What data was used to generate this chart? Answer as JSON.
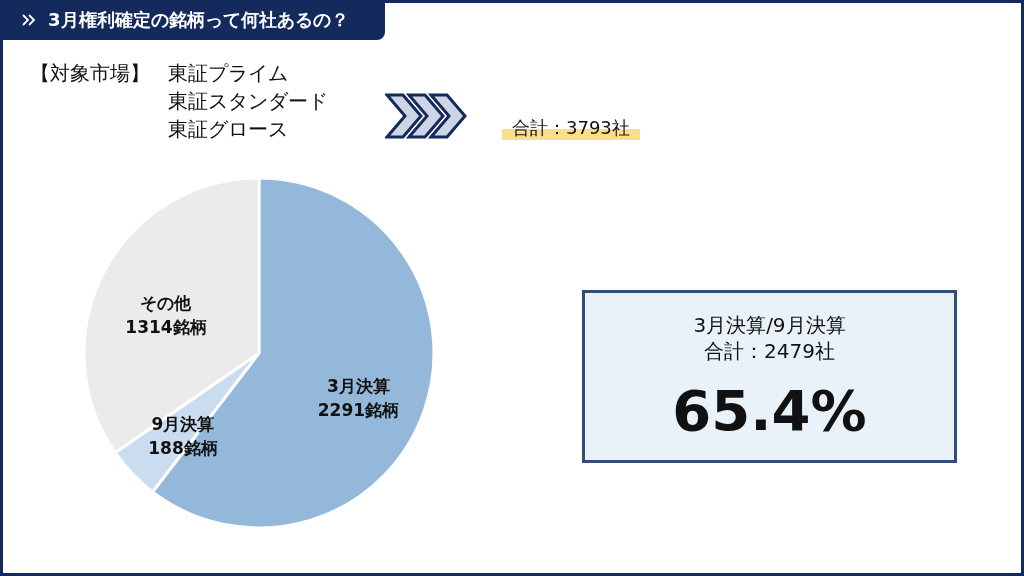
{
  "chart_data": {
    "type": "pie",
    "title": "3月権利確定の銘柄って何社あるの？",
    "categories": [
      "3月決算",
      "9月決算",
      "その他"
    ],
    "values": [
      2291,
      188,
      1314
    ],
    "value_labels": [
      "2291銘柄",
      "188銘柄",
      "1314銘柄"
    ],
    "colors": [
      "#94b8da",
      "#c9dcf0",
      "#ebebeb"
    ],
    "legend": false,
    "annotations": [
      "【対象市場】",
      "東証プライム",
      "東証スタンダード",
      "東証グロース",
      "合計：3793社",
      "3月決算/9月決算",
      "合計：2479社",
      "65.4%"
    ]
  }
}
